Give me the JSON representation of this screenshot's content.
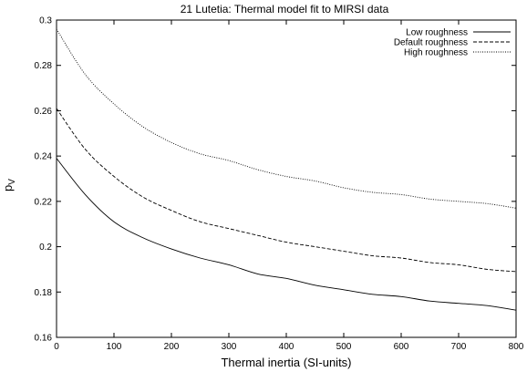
{
  "chart_data": {
    "type": "line",
    "title": "21 Lutetia: Thermal model fit to MIRSI data",
    "xlabel": "Thermal inertia (SI-units)",
    "ylabel_main": "p",
    "ylabel_sub": "V",
    "xlim": [
      0,
      800
    ],
    "ylim": [
      0.16,
      0.3
    ],
    "x_ticks": [
      0,
      100,
      200,
      300,
      400,
      500,
      600,
      700,
      800
    ],
    "y_ticks": [
      0.16,
      0.18,
      0.2,
      0.22,
      0.24,
      0.26,
      0.28,
      0.3
    ],
    "x_tick_labels": [
      "0",
      "100",
      "200",
      "300",
      "400",
      "500",
      "600",
      "700",
      "800"
    ],
    "y_tick_labels": [
      "0.16",
      "0.18",
      "0.2",
      "0.22",
      "0.24",
      "0.26",
      "0.28",
      "0.3"
    ],
    "grid": false,
    "legend_position": "top-right",
    "x": [
      0,
      50,
      100,
      150,
      200,
      250,
      300,
      350,
      400,
      450,
      500,
      550,
      600,
      650,
      700,
      750,
      800
    ],
    "series": [
      {
        "name": "Low roughness",
        "style": "solid",
        "values": [
          0.239,
          0.223,
          0.211,
          0.204,
          0.199,
          0.195,
          0.192,
          0.188,
          0.186,
          0.183,
          0.181,
          0.179,
          0.178,
          0.176,
          0.175,
          0.174,
          0.172
        ]
      },
      {
        "name": "Default roughness",
        "style": "dashed",
        "values": [
          0.261,
          0.243,
          0.231,
          0.222,
          0.216,
          0.211,
          0.208,
          0.205,
          0.202,
          0.2,
          0.198,
          0.196,
          0.195,
          0.193,
          0.192,
          0.19,
          0.189
        ]
      },
      {
        "name": "High roughness",
        "style": "dotted",
        "values": [
          0.296,
          0.276,
          0.263,
          0.253,
          0.246,
          0.241,
          0.238,
          0.234,
          0.231,
          0.229,
          0.226,
          0.224,
          0.223,
          0.221,
          0.22,
          0.219,
          0.217
        ]
      }
    ],
    "colors": {
      "line": "#000000",
      "background": "#ffffff"
    }
  }
}
